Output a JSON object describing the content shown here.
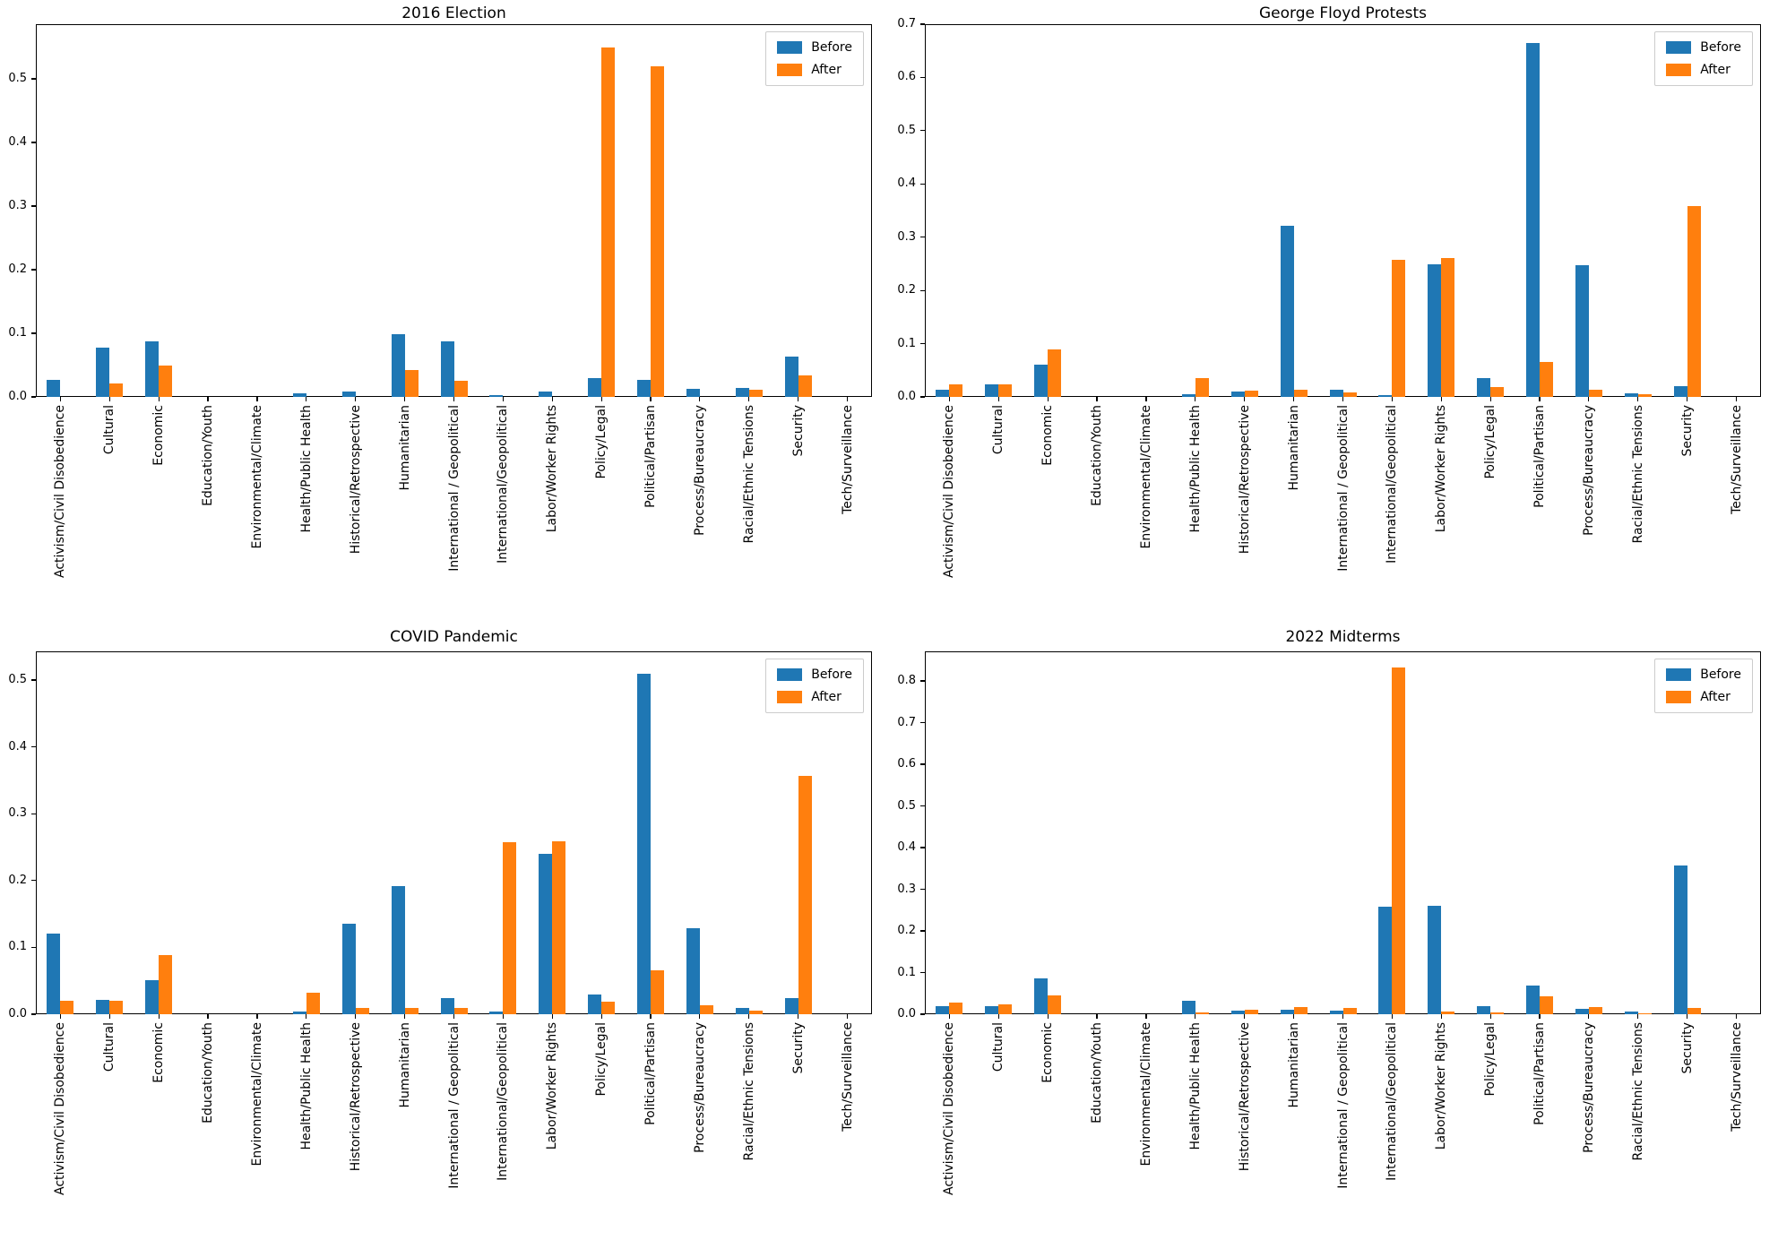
{
  "legend": {
    "before_label": "Before",
    "after_label": "After"
  },
  "colors": {
    "before": "#1f77b4",
    "after": "#ff7f0e"
  },
  "categories": [
    "Activism/Civil Disobedience",
    "Cultural",
    "Economic",
    "Education/Youth",
    "Environmental/Climate",
    "Health/Public Health",
    "Historical/Retrospective",
    "Humanitarian",
    "International / Geopolitical",
    "International/Geopolitical",
    "Labor/Worker Rights",
    "Policy/Legal",
    "Political/Partisan",
    "Process/Bureaucracy",
    "Racial/Ethnic Tensions",
    "Security",
    "Tech/Surveillance"
  ],
  "chart_data": [
    {
      "type": "bar",
      "title": "2016 Election",
      "xlabel": "",
      "ylabel": "",
      "grid": false,
      "legend_position": "upper right",
      "ylim": [
        0,
        0.586
      ],
      "yticks": [
        "0.0",
        "0.1",
        "0.2",
        "0.3",
        "0.4",
        "0.5"
      ],
      "series": [
        {
          "name": "Before",
          "values": [
            0.027,
            0.078,
            0.087,
            0,
            0,
            0.006,
            0.008,
            0.098,
            0.087,
            0.003,
            0.008,
            0.03,
            0.027,
            0.012,
            0.014,
            0.063,
            0
          ]
        },
        {
          "name": "After",
          "values": [
            0,
            0.021,
            0.05,
            0,
            0,
            0,
            0,
            0.042,
            0.025,
            0,
            0,
            0.55,
            0.52,
            0,
            0.011,
            0.034,
            0
          ]
        }
      ]
    },
    {
      "type": "bar",
      "title": "George Floyd Protests",
      "xlabel": "",
      "ylabel": "",
      "grid": false,
      "legend_position": "upper right",
      "ylim": [
        0,
        0.7
      ],
      "yticks": [
        "0.0",
        "0.1",
        "0.2",
        "0.3",
        "0.4",
        "0.5",
        "0.6",
        "0.7"
      ],
      "series": [
        {
          "name": "Before",
          "values": [
            0.014,
            0.023,
            0.06,
            0,
            0,
            0.005,
            0.01,
            0.322,
            0.013,
            0.004,
            0.249,
            0.035,
            0.665,
            0.248,
            0.007,
            0.021,
            0
          ]
        },
        {
          "name": "After",
          "values": [
            0.023,
            0.023,
            0.089,
            0,
            0,
            0.035,
            0.012,
            0.013,
            0.008,
            0.257,
            0.261,
            0.018,
            0.065,
            0.013,
            0.005,
            0.358,
            0
          ]
        }
      ]
    },
    {
      "type": "bar",
      "title": "COVID Pandemic",
      "xlabel": "",
      "ylabel": "",
      "grid": false,
      "legend_position": "upper right",
      "ylim": [
        0,
        0.543
      ],
      "yticks": [
        "0.0",
        "0.1",
        "0.2",
        "0.3",
        "0.4",
        "0.5"
      ],
      "series": [
        {
          "name": "Before",
          "values": [
            0.121,
            0.021,
            0.051,
            0,
            0,
            0.004,
            0.136,
            0.192,
            0.024,
            0.004,
            0.24,
            0.03,
            0.509,
            0.129,
            0.01,
            0.024,
            0
          ]
        },
        {
          "name": "After",
          "values": [
            0.02,
            0.02,
            0.088,
            0,
            0,
            0.032,
            0.009,
            0.01,
            0.009,
            0.257,
            0.259,
            0.019,
            0.066,
            0.014,
            0.006,
            0.357,
            0
          ]
        }
      ]
    },
    {
      "type": "bar",
      "title": "2022 Midterms",
      "xlabel": "",
      "ylabel": "",
      "grid": false,
      "legend_position": "upper right",
      "ylim": [
        0,
        0.871
      ],
      "yticks": [
        "0.0",
        "0.1",
        "0.2",
        "0.3",
        "0.4",
        "0.5",
        "0.6",
        "0.7",
        "0.8"
      ],
      "series": [
        {
          "name": "Before",
          "values": [
            0.019,
            0.019,
            0.085,
            0,
            0,
            0.032,
            0.009,
            0.011,
            0.008,
            0.258,
            0.261,
            0.02,
            0.068,
            0.013,
            0.007,
            0.357,
            0
          ]
        },
        {
          "name": "After",
          "values": [
            0.028,
            0.023,
            0.046,
            0,
            0,
            0.004,
            0.011,
            0.017,
            0.014,
            0.832,
            0.007,
            0.005,
            0.044,
            0.017,
            0.003,
            0.015,
            0
          ]
        }
      ]
    }
  ]
}
